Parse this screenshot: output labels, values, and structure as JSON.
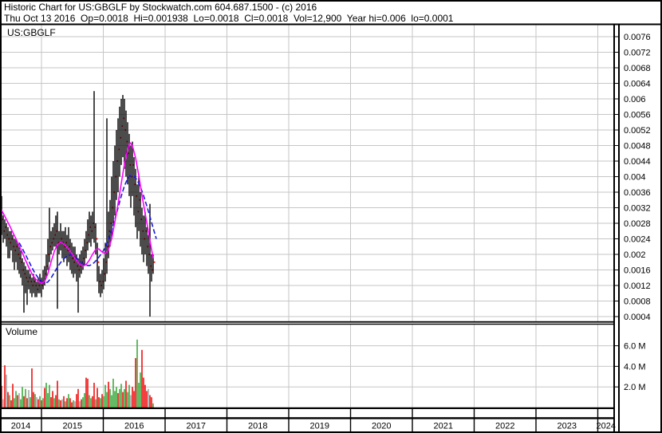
{
  "header": {
    "title": "Historic Chart for US:GBGLF by Stockwatch.com 604.687.1500 - (c) 2016",
    "info": "Thu Oct 13 2016  Op=0.0018  Hi=0.001938  Lo=0.0018  Cl=0.0018  Vol=12,900  Year hi=0.006  lo=0.0001"
  },
  "price_pane": {
    "symbol_label": "US:GBGLF"
  },
  "volume_pane": {
    "label": "Volume"
  },
  "chart_data": {
    "type": "bar",
    "subtype": "ohlc-hilo-bars-with-volume",
    "symbol": "US:GBGLF",
    "price_axis": {
      "tick_labels": [
        "0.0076",
        "0.0072",
        "0.0068",
        "0.0064",
        "0.006",
        "0.0056",
        "0.0052",
        "0.0048",
        "0.0044",
        "0.004",
        "0.0036",
        "0.0032",
        "0.0028",
        "0.0024",
        "0.002",
        "0.0016",
        "0.0012",
        "0.0008",
        "0.0004"
      ],
      "top_value": 0.0076,
      "step": 0.0004,
      "bottom_value": 0.0004
    },
    "volume_axis": {
      "tick_labels": [
        "6.0 M",
        "4.0 M",
        "2.0 M"
      ],
      "tick_values_millions": [
        6,
        4,
        2
      ]
    },
    "x_axis": {
      "years": [
        "2014",
        "2015",
        "2016",
        "2017",
        "2018",
        "2019",
        "2020",
        "2021",
        "2022",
        "2023",
        "2024"
      ]
    },
    "legend": {
      "grid": "on",
      "price_bars": "black high-low bars with red close ticks",
      "ma_fast_desc": "magenta moving average",
      "ma_slow_desc": "blue moving average"
    },
    "colors": {
      "bar": "#000000",
      "close_tick": "#ee0000",
      "ma_fast": "#ff00ff",
      "ma_slow": "#1b1bdd",
      "vol_up": "#3faa3f",
      "vol_down": "#ee1111",
      "vol_neutral": "#a8a8a8",
      "grid": "#c6c6c6",
      "text": "#000000"
    },
    "bars": [
      [
        0,
        0.0031,
        0.0024,
        0.0027
      ],
      [
        2,
        0.0035,
        0.0025,
        0.0029
      ],
      [
        4,
        0.003,
        0.0023,
        0.0026
      ],
      [
        6,
        0.0029,
        0.0024,
        0.0027
      ],
      [
        8,
        0.0028,
        0.0022,
        0.0025
      ],
      [
        10,
        0.0027,
        0.0019,
        0.0024
      ],
      [
        12,
        0.0026,
        0.0019,
        0.0023
      ],
      [
        14,
        0.0026,
        0.0021,
        0.0024
      ],
      [
        16,
        0.0025,
        0.0018,
        0.0022
      ],
      [
        18,
        0.0024,
        0.0016,
        0.0021
      ],
      [
        20,
        0.0024,
        0.0018,
        0.0022
      ],
      [
        22,
        0.0023,
        0.0016,
        0.002
      ],
      [
        24,
        0.0022,
        0.0015,
        0.0019
      ],
      [
        26,
        0.0021,
        0.0014,
        0.0018
      ],
      [
        28,
        0.0019,
        0.0012,
        0.0016
      ],
      [
        30,
        0.0018,
        0.0005,
        0.0015
      ],
      [
        32,
        0.0017,
        0.001,
        0.0014
      ],
      [
        34,
        0.0016,
        0.0007,
        0.0013
      ],
      [
        36,
        0.0016,
        0.0011,
        0.0014
      ],
      [
        38,
        0.0015,
        0.001,
        0.0013
      ],
      [
        40,
        0.0014,
        0.0009,
        0.0012
      ],
      [
        42,
        0.0015,
        0.001,
        0.0013
      ],
      [
        44,
        0.0014,
        0.0009,
        0.0012
      ],
      [
        46,
        0.0013,
        0.0009,
        0.0011
      ],
      [
        48,
        0.0014,
        0.001,
        0.0012
      ],
      [
        50,
        0.0015,
        0.001,
        0.0013
      ],
      [
        52,
        0.0014,
        0.0009,
        0.0012
      ],
      [
        54,
        0.0016,
        0.0011,
        0.0013
      ],
      [
        56,
        0.0017,
        0.0012,
        0.0015
      ],
      [
        58,
        0.002,
        0.0014,
        0.0017
      ],
      [
        60,
        0.0024,
        0.0016,
        0.002
      ],
      [
        62,
        0.0032,
        0.0018,
        0.0022
      ],
      [
        64,
        0.0026,
        0.002,
        0.0023
      ],
      [
        66,
        0.0027,
        0.0021,
        0.0024
      ],
      [
        68,
        0.0028,
        0.0022,
        0.0025
      ],
      [
        70,
        0.003,
        0.0022,
        0.0026
      ],
      [
        72,
        0.0031,
        0.0006,
        0.0023
      ],
      [
        74,
        0.0026,
        0.002,
        0.0023
      ],
      [
        76,
        0.0028,
        0.0021,
        0.0024
      ],
      [
        78,
        0.0026,
        0.0019,
        0.0023
      ],
      [
        80,
        0.0026,
        0.0018,
        0.0022
      ],
      [
        82,
        0.0027,
        0.0019,
        0.0023
      ],
      [
        84,
        0.0025,
        0.0017,
        0.0021
      ],
      [
        86,
        0.0027,
        0.0018,
        0.0022
      ],
      [
        88,
        0.0024,
        0.0016,
        0.002
      ],
      [
        90,
        0.0023,
        0.0015,
        0.0019
      ],
      [
        92,
        0.0022,
        0.0014,
        0.0018
      ],
      [
        94,
        0.0022,
        0.0015,
        0.0019
      ],
      [
        96,
        0.002,
        0.0013,
        0.0017
      ],
      [
        98,
        0.0019,
        0.0005,
        0.0016
      ],
      [
        100,
        0.002,
        0.0014,
        0.0017
      ],
      [
        102,
        0.0021,
        0.0015,
        0.0018
      ],
      [
        104,
        0.0022,
        0.0016,
        0.0019
      ],
      [
        106,
        0.0024,
        0.0017,
        0.0021
      ],
      [
        108,
        0.0026,
        0.0019,
        0.0023
      ],
      [
        110,
        0.0029,
        0.0021,
        0.0025
      ],
      [
        112,
        0.0031,
        0.0023,
        0.0027
      ],
      [
        114,
        0.003,
        0.0022,
        0.0026
      ],
      [
        116,
        0.0031,
        0.0024,
        0.0028
      ],
      [
        118,
        0.0062,
        0.0023,
        0.0027
      ],
      [
        120,
        0.0028,
        0.002,
        0.0024
      ],
      [
        122,
        0.0023,
        0.0013,
        0.0018
      ],
      [
        124,
        0.0017,
        0.001,
        0.0013
      ],
      [
        126,
        0.0015,
        0.0009,
        0.0012
      ],
      [
        128,
        0.0016,
        0.001,
        0.0013
      ],
      [
        130,
        0.0019,
        0.0011,
        0.0015
      ],
      [
        132,
        0.0023,
        0.0013,
        0.0018
      ],
      [
        134,
        0.0055,
        0.0015,
        0.0022
      ],
      [
        136,
        0.0031,
        0.0019,
        0.0026
      ],
      [
        138,
        0.0034,
        0.0022,
        0.0028
      ],
      [
        140,
        0.004,
        0.0024,
        0.0032
      ],
      [
        142,
        0.0044,
        0.0028,
        0.0036
      ],
      [
        144,
        0.0048,
        0.003,
        0.004
      ],
      [
        146,
        0.0052,
        0.0034,
        0.0044
      ],
      [
        148,
        0.0055,
        0.0036,
        0.0047
      ],
      [
        150,
        0.0058,
        0.004,
        0.005
      ],
      [
        152,
        0.006,
        0.0043,
        0.0053
      ],
      [
        154,
        0.0061,
        0.0045,
        0.0055
      ],
      [
        156,
        0.006,
        0.0042,
        0.0052
      ],
      [
        158,
        0.0057,
        0.004,
        0.0049
      ],
      [
        160,
        0.0054,
        0.0038,
        0.0046
      ],
      [
        162,
        0.0051,
        0.0035,
        0.0043
      ],
      [
        164,
        0.0048,
        0.0032,
        0.004
      ],
      [
        166,
        0.0049,
        0.0035,
        0.0043
      ],
      [
        168,
        0.0045,
        0.003,
        0.0038
      ],
      [
        170,
        0.0042,
        0.0027,
        0.0035
      ],
      [
        172,
        0.0038,
        0.0024,
        0.0031
      ],
      [
        174,
        0.004,
        0.0026,
        0.0034
      ],
      [
        176,
        0.0036,
        0.0022,
        0.0029
      ],
      [
        178,
        0.0032,
        0.002,
        0.0026
      ],
      [
        180,
        0.003,
        0.0018,
        0.0024
      ],
      [
        182,
        0.0031,
        0.002,
        0.0026
      ],
      [
        184,
        0.0027,
        0.0017,
        0.0022
      ],
      [
        186,
        0.0025,
        0.0015,
        0.002
      ],
      [
        188,
        0.0033,
        0.0004,
        0.0017
      ],
      [
        190,
        0.002,
        0.0013,
        0.0016
      ],
      [
        192,
        0.002,
        0.0015,
        0.0018
      ]
    ],
    "ma_fast": {
      "points": [
        [
          0,
          0.0032
        ],
        [
          4,
          0.00306
        ],
        [
          8,
          0.0029
        ],
        [
          12,
          0.00274
        ],
        [
          16,
          0.00257
        ],
        [
          20,
          0.0024
        ],
        [
          24,
          0.00222
        ],
        [
          28,
          0.00204
        ],
        [
          32,
          0.00185
        ],
        [
          36,
          0.00167
        ],
        [
          40,
          0.0015
        ],
        [
          44,
          0.00138
        ],
        [
          48,
          0.0013
        ],
        [
          52,
          0.00126
        ],
        [
          56,
          0.0013
        ],
        [
          60,
          0.0015
        ],
        [
          64,
          0.0018
        ],
        [
          68,
          0.00207
        ],
        [
          72,
          0.00225
        ],
        [
          76,
          0.00231
        ],
        [
          80,
          0.00227
        ],
        [
          84,
          0.00218
        ],
        [
          88,
          0.00208
        ],
        [
          92,
          0.00196
        ],
        [
          96,
          0.00184
        ],
        [
          100,
          0.00174
        ],
        [
          104,
          0.0017
        ],
        [
          108,
          0.00174
        ],
        [
          112,
          0.00185
        ],
        [
          116,
          0.002
        ],
        [
          120,
          0.00213
        ],
        [
          124,
          0.00214
        ],
        [
          128,
          0.00206
        ],
        [
          132,
          0.00202
        ],
        [
          136,
          0.00212
        ],
        [
          140,
          0.0024
        ],
        [
          144,
          0.00283
        ],
        [
          148,
          0.0033
        ],
        [
          152,
          0.00382
        ],
        [
          156,
          0.00432
        ],
        [
          160,
          0.0047
        ],
        [
          163,
          0.00487
        ],
        [
          166,
          0.0048
        ],
        [
          170,
          0.00448
        ],
        [
          174,
          0.00403
        ],
        [
          178,
          0.00352
        ],
        [
          182,
          0.00305
        ],
        [
          186,
          0.0026
        ],
        [
          189,
          0.00224
        ],
        [
          192,
          0.0019
        ]
      ]
    },
    "ma_slow": {
      "dashed": true,
      "points": [
        [
          24,
          0.0023
        ],
        [
          28,
          0.00215
        ],
        [
          32,
          0.00199
        ],
        [
          36,
          0.00183
        ],
        [
          40,
          0.00166
        ],
        [
          44,
          0.00151
        ],
        [
          48,
          0.00139
        ],
        [
          52,
          0.0013
        ],
        [
          56,
          0.00126
        ],
        [
          60,
          0.00129
        ],
        [
          64,
          0.00139
        ],
        [
          68,
          0.00153
        ],
        [
          72,
          0.00167
        ],
        [
          76,
          0.00179
        ],
        [
          80,
          0.00189
        ],
        [
          84,
          0.00196
        ],
        [
          88,
          0.00199
        ],
        [
          92,
          0.00197
        ],
        [
          96,
          0.00191
        ],
        [
          100,
          0.00183
        ],
        [
          104,
          0.00176
        ],
        [
          108,
          0.00172
        ],
        [
          112,
          0.00171
        ],
        [
          116,
          0.00175
        ],
        [
          120,
          0.00183
        ],
        [
          124,
          0.00193
        ],
        [
          128,
          0.00204
        ],
        [
          132,
          0.00218
        ],
        [
          136,
          0.00238
        ],
        [
          140,
          0.00262
        ],
        [
          144,
          0.0029
        ],
        [
          148,
          0.0032
        ],
        [
          152,
          0.0035
        ],
        [
          156,
          0.00376
        ],
        [
          160,
          0.00395
        ],
        [
          164,
          0.00404
        ],
        [
          168,
          0.00402
        ],
        [
          172,
          0.00391
        ],
        [
          176,
          0.00374
        ],
        [
          180,
          0.00351
        ],
        [
          184,
          0.00325
        ],
        [
          188,
          0.00297
        ],
        [
          192,
          0.00268
        ],
        [
          196,
          0.0024
        ]
      ]
    },
    "volume_bars_millions": [
      [
        0,
        1.0,
        "r"
      ],
      [
        2,
        2.1,
        "r"
      ],
      [
        4,
        0.8,
        "n"
      ],
      [
        6,
        4.1,
        "r"
      ],
      [
        8,
        3.2,
        "n"
      ],
      [
        10,
        1.5,
        "r"
      ],
      [
        12,
        1.2,
        "g"
      ],
      [
        14,
        0.7,
        "r"
      ],
      [
        16,
        2.3,
        "r"
      ],
      [
        18,
        0.9,
        "g"
      ],
      [
        20,
        1.6,
        "g"
      ],
      [
        22,
        1.2,
        "r"
      ],
      [
        24,
        1.4,
        "n"
      ],
      [
        26,
        0.8,
        "g"
      ],
      [
        28,
        2.0,
        "g"
      ],
      [
        30,
        1.1,
        "r"
      ],
      [
        32,
        1.8,
        "g"
      ],
      [
        34,
        0.9,
        "r"
      ],
      [
        36,
        1.7,
        "n"
      ],
      [
        38,
        1.0,
        "g"
      ],
      [
        40,
        3.8,
        "r"
      ],
      [
        42,
        1.5,
        "r"
      ],
      [
        44,
        1.3,
        "g"
      ],
      [
        46,
        1.0,
        "n"
      ],
      [
        48,
        0.8,
        "r"
      ],
      [
        50,
        1.1,
        "g"
      ],
      [
        52,
        0.7,
        "r"
      ],
      [
        54,
        0.9,
        "g"
      ],
      [
        56,
        1.9,
        "r"
      ],
      [
        58,
        2.4,
        "g"
      ],
      [
        60,
        1.4,
        "g"
      ],
      [
        62,
        2.2,
        "g"
      ],
      [
        64,
        1.0,
        "r"
      ],
      [
        66,
        1.6,
        "r"
      ],
      [
        68,
        0.9,
        "g"
      ],
      [
        70,
        1.2,
        "r"
      ],
      [
        72,
        2.6,
        "r"
      ],
      [
        74,
        0.8,
        "g"
      ],
      [
        76,
        0.7,
        "r"
      ],
      [
        78,
        0.8,
        "n"
      ],
      [
        80,
        1.1,
        "r"
      ],
      [
        82,
        0.6,
        "g"
      ],
      [
        84,
        0.9,
        "r"
      ],
      [
        86,
        1.3,
        "g"
      ],
      [
        88,
        0.9,
        "r"
      ],
      [
        90,
        0.5,
        "r"
      ],
      [
        92,
        0.7,
        "g"
      ],
      [
        94,
        0.6,
        "n"
      ],
      [
        96,
        1.3,
        "r"
      ],
      [
        98,
        1.8,
        "r"
      ],
      [
        100,
        0.6,
        "n"
      ],
      [
        102,
        0.8,
        "r"
      ],
      [
        104,
        1.0,
        "g"
      ],
      [
        106,
        1.4,
        "g"
      ],
      [
        108,
        2.9,
        "r"
      ],
      [
        110,
        2.8,
        "r"
      ],
      [
        112,
        1.2,
        "g"
      ],
      [
        114,
        0.9,
        "g"
      ],
      [
        116,
        1.1,
        "r"
      ],
      [
        118,
        2.4,
        "r"
      ],
      [
        120,
        0.8,
        "g"
      ],
      [
        122,
        1.9,
        "r"
      ],
      [
        124,
        1.0,
        "r"
      ],
      [
        126,
        0.9,
        "g"
      ],
      [
        128,
        1.3,
        "r"
      ],
      [
        130,
        1.1,
        "g"
      ],
      [
        132,
        2.2,
        "g"
      ],
      [
        134,
        1.5,
        "g"
      ],
      [
        136,
        2.5,
        "r"
      ],
      [
        138,
        1.8,
        "g"
      ],
      [
        140,
        1.2,
        "g"
      ],
      [
        142,
        2.8,
        "g"
      ],
      [
        144,
        1.6,
        "g"
      ],
      [
        146,
        2.0,
        "g"
      ],
      [
        148,
        1.4,
        "r"
      ],
      [
        150,
        1.8,
        "g"
      ],
      [
        152,
        2.3,
        "g"
      ],
      [
        154,
        1.5,
        "r"
      ],
      [
        156,
        1.8,
        "g"
      ],
      [
        158,
        2.6,
        "r"
      ],
      [
        160,
        1.5,
        "g"
      ],
      [
        162,
        2.2,
        "g"
      ],
      [
        164,
        1.2,
        "n"
      ],
      [
        166,
        2.0,
        "r"
      ],
      [
        168,
        1.6,
        "r"
      ],
      [
        170,
        4.8,
        "r"
      ],
      [
        172,
        6.6,
        "g"
      ],
      [
        174,
        2.4,
        "g"
      ],
      [
        176,
        3.4,
        "g"
      ],
      [
        178,
        5.6,
        "r"
      ],
      [
        180,
        2.9,
        "r"
      ],
      [
        182,
        2.2,
        "r"
      ],
      [
        184,
        1.6,
        "r"
      ],
      [
        186,
        1.8,
        "n"
      ],
      [
        188,
        1.2,
        "r"
      ],
      [
        190,
        1.0,
        "r"
      ],
      [
        192,
        0.4,
        "g"
      ]
    ]
  }
}
